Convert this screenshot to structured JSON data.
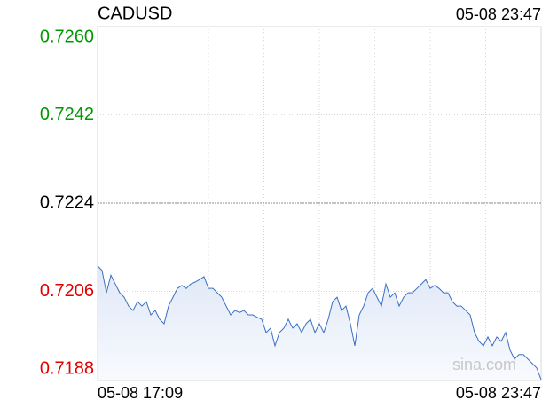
{
  "chart_data": {
    "type": "line",
    "title": "CADUSD",
    "timestamp": "05-08 23:47",
    "watermark": "sina.com",
    "categories": [
      "05-08 17:09",
      null,
      null,
      null,
      null,
      null,
      null,
      null,
      null,
      null,
      null,
      null,
      null,
      null,
      null,
      null,
      null,
      null,
      null,
      null,
      null,
      null,
      null,
      null,
      null,
      null,
      null,
      null,
      null,
      null,
      null,
      null,
      null,
      null,
      null,
      null,
      null,
      null,
      null,
      null,
      null,
      null,
      null,
      null,
      null,
      null,
      null,
      null,
      null,
      null,
      null,
      null,
      null,
      null,
      null,
      null,
      null,
      null,
      null,
      null,
      null,
      null,
      null,
      null,
      null,
      null,
      null,
      null,
      null,
      null,
      null,
      null,
      null,
      null,
      null,
      null,
      null,
      null,
      null,
      null,
      null,
      null,
      null,
      null,
      null,
      null,
      null,
      null,
      null,
      null,
      null,
      null,
      null,
      null,
      null,
      null,
      null,
      null,
      null,
      null,
      "05-08 23:47"
    ],
    "series": [
      {
        "name": "CADUSD",
        "color": "#3b6fc1",
        "values": [
          0.72112,
          0.72103,
          0.72057,
          0.72093,
          0.72075,
          0.72057,
          0.72048,
          0.7203,
          0.72021,
          0.72039,
          0.7203,
          0.72039,
          0.72012,
          0.72021,
          0.72003,
          0.71994,
          0.7203,
          0.72048,
          0.72066,
          0.72072,
          0.72066,
          0.72075,
          0.72079,
          0.72084,
          0.7209,
          0.72066,
          0.72066,
          0.72057,
          0.72048,
          0.7203,
          0.72012,
          0.72021,
          0.72017,
          0.72021,
          0.72012,
          0.72012,
          0.72007,
          0.72003,
          0.71976,
          0.71985,
          0.71949,
          0.71976,
          0.71985,
          0.72003,
          0.71985,
          0.71994,
          0.71976,
          0.71994,
          0.72003,
          0.71976,
          0.71994,
          0.71976,
          0.72003,
          0.72039,
          0.72048,
          0.72021,
          0.7203,
          0.71994,
          0.71949,
          0.72012,
          0.7203,
          0.72057,
          0.72066,
          0.72048,
          0.7203,
          0.72075,
          0.72048,
          0.72057,
          0.7203,
          0.72048,
          0.72057,
          0.72057,
          0.72066,
          0.72075,
          0.72084,
          0.72066,
          0.72072,
          0.72066,
          0.72057,
          0.72057,
          0.72039,
          0.7203,
          0.7203,
          0.72021,
          0.72012,
          0.71976,
          0.71958,
          0.71949,
          0.71967,
          0.71949,
          0.71967,
          0.71958,
          0.71976,
          0.7194,
          0.71922,
          0.71931,
          0.71931,
          0.71922,
          0.71913,
          0.71904,
          0.7188
        ]
      }
    ],
    "ylim": [
      0.7188,
      0.726
    ],
    "yticks": [
      {
        "value": 0.726,
        "label": "0.7260"
      },
      0.7242,
      0.7224,
      0.7206,
      0.7188
    ],
    "reference_line": 0.7224,
    "up_color": "#009a00",
    "down_color": "#e00000",
    "grid": true
  }
}
